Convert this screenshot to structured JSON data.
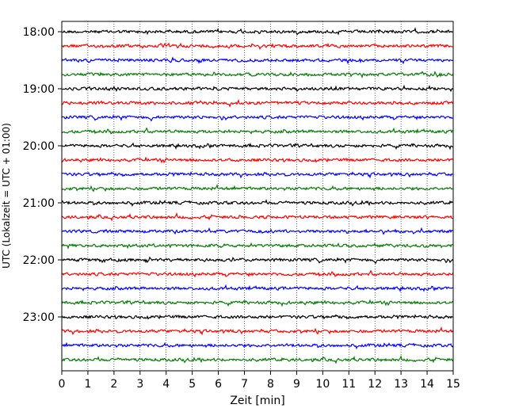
{
  "chart_data": {
    "type": "line",
    "title": "",
    "xlabel": "Zeit  [min]",
    "ylabel": "UTC (Lokalzeit = UTC + 01:00)",
    "xlim": [
      0,
      15
    ],
    "x_ticks": [
      "0",
      "1",
      "2",
      "3",
      "4",
      "5",
      "6",
      "7",
      "8",
      "9",
      "10",
      "11",
      "12",
      "13",
      "14",
      "15"
    ],
    "y_tick_labels": [
      "18:00",
      "19:00",
      "20:00",
      "21:00",
      "22:00",
      "23:00"
    ],
    "rows_per_hour": 4,
    "row_start_times": [
      "18:00",
      "18:15",
      "18:30",
      "18:45",
      "19:00",
      "19:15",
      "19:30",
      "19:45",
      "20:00",
      "20:15",
      "20:30",
      "20:45",
      "21:00",
      "21:15",
      "21:30",
      "21:45",
      "22:00",
      "22:15",
      "22:30",
      "22:45",
      "23:00",
      "23:15",
      "23:30",
      "23:45"
    ],
    "trace_colors": [
      "#000000",
      "#ff0000",
      "#0000ff",
      "#008000"
    ],
    "grid": "vertical dotted at each minute"
  }
}
